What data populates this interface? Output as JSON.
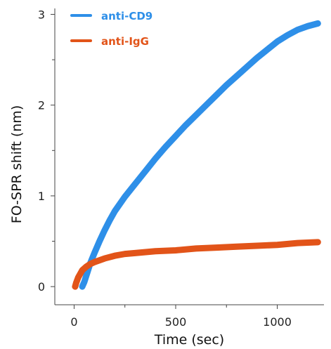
{
  "chart_data": {
    "type": "line",
    "xlabel": "Time (sec)",
    "ylabel": "FO-SPR shift (nm)",
    "xlim": [
      -95,
      1230
    ],
    "ylim": [
      -0.2,
      3.05
    ],
    "x_ticks": [
      {
        "value": 0,
        "label": "0"
      },
      {
        "value": 250,
        "label": ""
      },
      {
        "value": 500,
        "label": "500"
      },
      {
        "value": 750,
        "label": ""
      },
      {
        "value": 1000,
        "label": "1000"
      }
    ],
    "y_ticks": [
      {
        "value": 0,
        "label": "0"
      },
      {
        "value": 0.5,
        "label": ""
      },
      {
        "value": 1,
        "label": "1"
      },
      {
        "value": 1.5,
        "label": ""
      },
      {
        "value": 2,
        "label": "2"
      },
      {
        "value": 2.5,
        "label": ""
      },
      {
        "value": 3,
        "label": "3"
      }
    ],
    "legend_position": "top-left",
    "series": [
      {
        "name": "anti-CD9",
        "color": "#2E8FE8",
        "x": [
          40,
          50,
          60,
          70,
          80,
          100,
          125,
          150,
          175,
          200,
          250,
          300,
          350,
          400,
          450,
          500,
          550,
          600,
          650,
          700,
          750,
          800,
          850,
          900,
          950,
          1000,
          1050,
          1100,
          1150,
          1200
        ],
        "y": [
          0.0,
          0.05,
          0.12,
          0.19,
          0.26,
          0.37,
          0.5,
          0.62,
          0.73,
          0.83,
          0.99,
          1.13,
          1.27,
          1.41,
          1.54,
          1.66,
          1.78,
          1.89,
          2.0,
          2.11,
          2.22,
          2.32,
          2.42,
          2.52,
          2.61,
          2.7,
          2.77,
          2.83,
          2.87,
          2.9
        ]
      },
      {
        "name": "anti-IgG",
        "color": "#E25419",
        "x": [
          5,
          10,
          20,
          30,
          40,
          60,
          80,
          100,
          150,
          200,
          250,
          300,
          400,
          500,
          600,
          700,
          800,
          900,
          1000,
          1100,
          1200
        ],
        "y": [
          0.0,
          0.04,
          0.1,
          0.14,
          0.18,
          0.22,
          0.25,
          0.27,
          0.31,
          0.34,
          0.36,
          0.37,
          0.39,
          0.4,
          0.42,
          0.43,
          0.44,
          0.45,
          0.46,
          0.48,
          0.49
        ]
      }
    ]
  }
}
